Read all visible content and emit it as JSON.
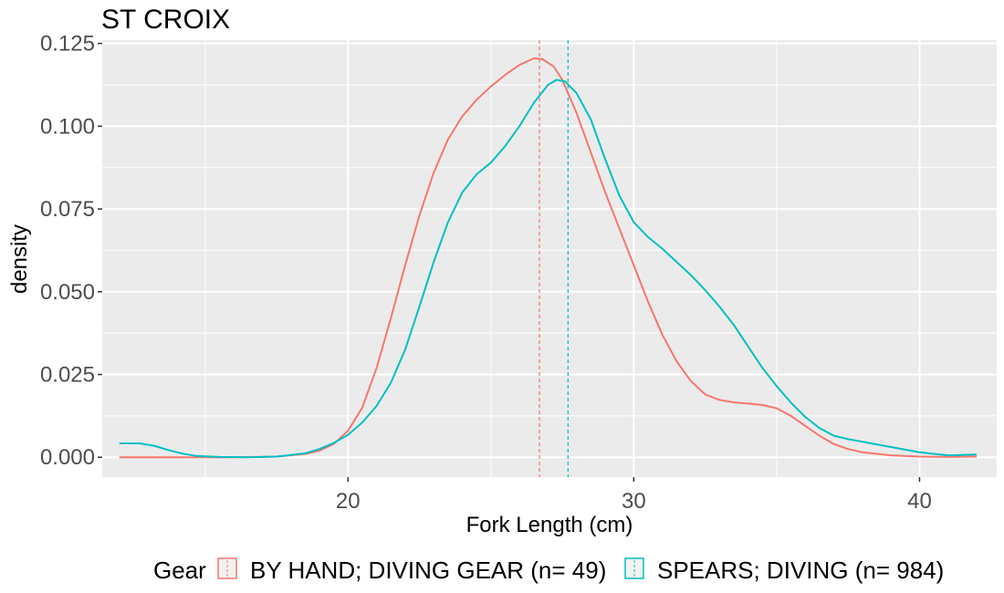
{
  "chart_data": {
    "type": "line",
    "title": "ST CROIX",
    "xlabel": "Fork Length (cm)",
    "ylabel": "density",
    "xlim": [
      11.4,
      42.7
    ],
    "ylim": [
      -0.006,
      0.126
    ],
    "x_ticks": [
      20,
      30,
      40
    ],
    "x_tick_labels": [
      "20",
      "30",
      "40"
    ],
    "y_ticks": [
      0.0,
      0.025,
      0.05,
      0.075,
      0.1,
      0.125
    ],
    "y_tick_labels": [
      "0.000",
      "0.025",
      "0.050",
      "0.075",
      "0.100",
      "0.125"
    ],
    "grid": true,
    "legend_position": "bottom",
    "legend_title": "Gear",
    "series": [
      {
        "name": "BY HAND; DIVING GEAR (n= 49)",
        "color": "#F8766D",
        "mean": 26.7,
        "x": [
          12.0,
          14.0,
          16.0,
          17.5,
          18.5,
          19.0,
          19.5,
          20.0,
          20.5,
          21.0,
          21.5,
          22.0,
          22.5,
          23.0,
          23.5,
          24.0,
          24.5,
          25.0,
          25.5,
          26.0,
          26.5,
          26.8,
          27.2,
          27.5,
          28.0,
          28.5,
          29.0,
          29.5,
          30.0,
          30.5,
          31.0,
          31.5,
          32.0,
          32.5,
          33.0,
          33.5,
          34.0,
          34.5,
          35.0,
          35.5,
          36.0,
          36.5,
          37.0,
          37.5,
          38.0,
          39.0,
          40.0,
          41.0,
          42.0
        ],
        "y": [
          0.0,
          0.0,
          0.0,
          0.0002,
          0.001,
          0.002,
          0.004,
          0.008,
          0.015,
          0.027,
          0.042,
          0.058,
          0.073,
          0.086,
          0.096,
          0.103,
          0.108,
          0.112,
          0.1155,
          0.1185,
          0.1205,
          0.1203,
          0.118,
          0.114,
          0.104,
          0.092,
          0.08,
          0.069,
          0.058,
          0.047,
          0.037,
          0.029,
          0.023,
          0.019,
          0.0173,
          0.0166,
          0.0162,
          0.0158,
          0.0148,
          0.0125,
          0.0095,
          0.0065,
          0.004,
          0.0025,
          0.0015,
          0.0006,
          0.0002,
          0.0001,
          0.0002
        ]
      },
      {
        "name": "SPEARS; DIVING (n= 984)",
        "color": "#00BFC4",
        "mean": 27.7,
        "x": [
          12.0,
          12.7,
          13.2,
          13.7,
          14.2,
          14.7,
          15.5,
          16.5,
          17.5,
          18.5,
          19.0,
          19.5,
          20.0,
          20.5,
          21.0,
          21.5,
          22.0,
          22.5,
          23.0,
          23.5,
          24.0,
          24.5,
          25.0,
          25.5,
          26.0,
          26.5,
          27.0,
          27.3,
          27.6,
          28.0,
          28.5,
          29.0,
          29.5,
          30.0,
          30.5,
          31.0,
          31.5,
          32.0,
          32.5,
          33.0,
          33.5,
          34.0,
          34.5,
          35.0,
          35.5,
          36.0,
          36.5,
          37.0,
          37.5,
          38.0,
          38.5,
          39.0,
          39.5,
          40.0,
          41.0,
          42.0
        ],
        "y": [
          0.0042,
          0.0042,
          0.0035,
          0.0022,
          0.0011,
          0.0004,
          0.0001,
          0.0,
          0.0002,
          0.0012,
          0.0025,
          0.0043,
          0.0068,
          0.0105,
          0.0155,
          0.0225,
          0.0325,
          0.0455,
          0.059,
          0.071,
          0.08,
          0.0855,
          0.089,
          0.094,
          0.1,
          0.107,
          0.1125,
          0.114,
          0.1135,
          0.11,
          0.102,
          0.09,
          0.079,
          0.071,
          0.0665,
          0.063,
          0.059,
          0.055,
          0.0505,
          0.0455,
          0.04,
          0.0335,
          0.027,
          0.0215,
          0.0165,
          0.0122,
          0.0088,
          0.0065,
          0.0055,
          0.0047,
          0.0039,
          0.0031,
          0.0023,
          0.0015,
          0.0006,
          0.0008
        ]
      }
    ]
  }
}
